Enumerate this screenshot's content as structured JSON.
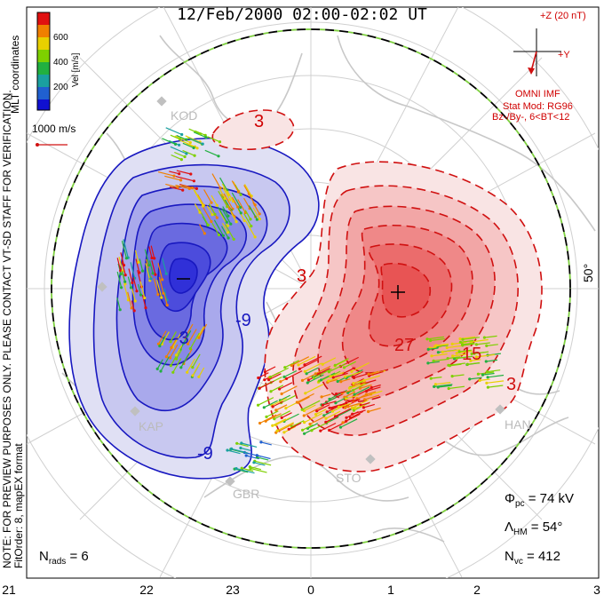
{
  "title": "12/Feb/2000 02:00-02:02 UT",
  "side_note": {
    "line1": "NOTE: FOR PREVIEW PURPOSES ONLY. PLEASE CONTACT VT-SD STAFF FOR VERIFICATION.",
    "line2": "FitOrder: 8, mapEX format"
  },
  "coords_label": "MLT coordinates",
  "colorbar": {
    "label": "Vel [m/s]",
    "ticks": [
      "600",
      "400",
      "200"
    ],
    "colors": [
      "#e01010",
      "#f08000",
      "#e8d000",
      "#7ed000",
      "#22b040",
      "#1aa0a0",
      "#2060d0",
      "#1010d0"
    ]
  },
  "scale_arrow_label": "1000 m/s",
  "imf": {
    "z_label": "+Z (20 nT)",
    "y_label": "+Y",
    "line1": "OMNI IMF",
    "line2": "Stat Mod: RG96",
    "line3": "Bz-/By-, 6<BT<12"
  },
  "lat_label": "50°",
  "contour_labels": [
    "3",
    "3",
    "-3",
    "-9",
    "9",
    "-9",
    "27",
    "15",
    "3"
  ],
  "site_labels": [
    "KOD",
    "KAP",
    "GBR",
    "STO",
    "HAN"
  ],
  "stats": {
    "phi_symbol": "Φ",
    "phi_sub": "pc",
    "phi_value": "= 74 kV",
    "lambda_symbol": "Λ",
    "lambda_sub": "HM",
    "lambda_value": "= 54°",
    "nvc_symbol": "N",
    "nvc_sub": "vc",
    "nvc_value": "= 412",
    "nrads_symbol": "N",
    "nrads_sub": "rads",
    "nrads_value": "= 6"
  },
  "mlt_ticks": [
    "21",
    "22",
    "23",
    "0",
    "1",
    "2",
    "3"
  ]
}
